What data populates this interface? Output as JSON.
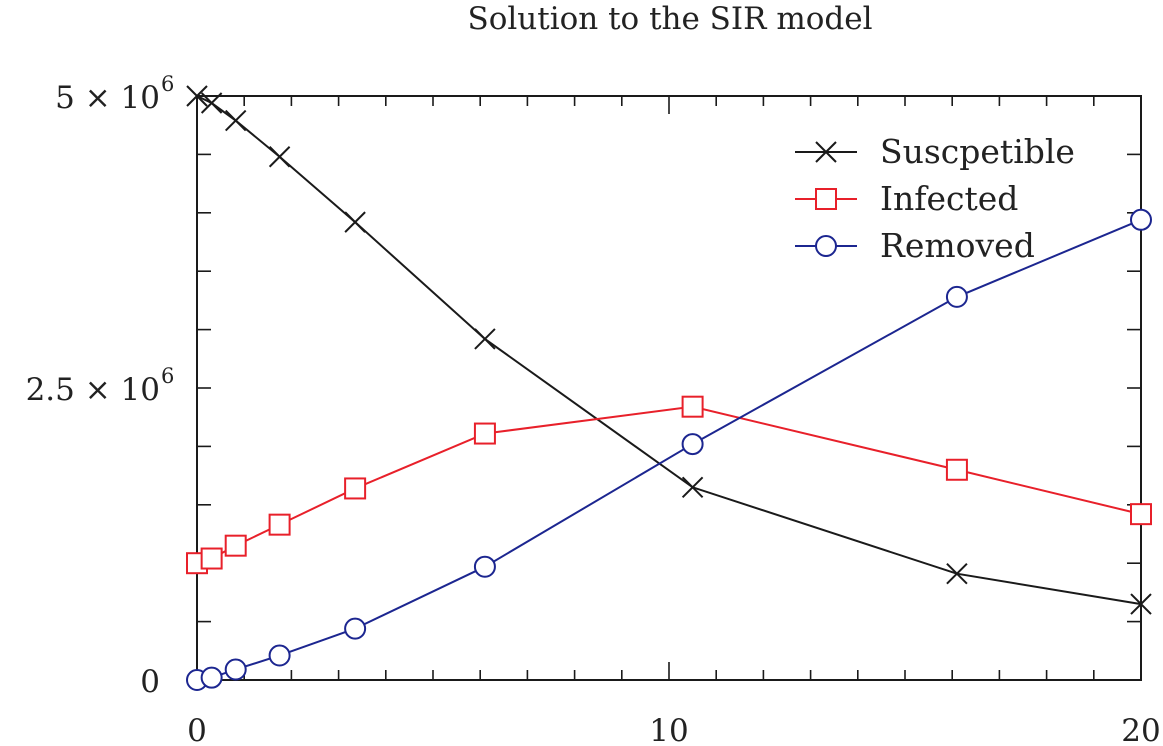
{
  "chart_data": {
    "type": "line",
    "title": "Solution to the SIR model",
    "xlabel": "",
    "ylabel": "",
    "xlim": [
      0,
      20
    ],
    "ylim": [
      0,
      5000000
    ],
    "grid": false,
    "legend_position": "top-right",
    "x_ticks": [
      {
        "value": 0,
        "label": "0"
      },
      {
        "value": 10,
        "label": "10"
      },
      {
        "value": 20,
        "label": "20"
      }
    ],
    "y_ticks": [
      {
        "value": 0,
        "label": "0",
        "exponent": ""
      },
      {
        "value": 2500000,
        "label": "2.5 × 10",
        "exponent": "6"
      },
      {
        "value": 5000000,
        "label": "5 × 10",
        "exponent": "6"
      }
    ],
    "series": [
      {
        "name": "Suscpetible",
        "color": "#1a1a1a",
        "marker": "cross",
        "x": [
          0,
          0.31,
          0.82,
          1.75,
          3.35,
          6.1,
          10.5,
          16.1,
          20
        ],
        "y": [
          5000000,
          4940000,
          4790000,
          4480000,
          3920000,
          2920000,
          1650000,
          910000,
          650000
        ]
      },
      {
        "name": "Infected",
        "color": "#e8202a",
        "marker": "square",
        "x": [
          0,
          0.31,
          0.82,
          1.75,
          3.35,
          6.1,
          10.5,
          16.1,
          20
        ],
        "y": [
          1000000,
          1040000,
          1150000,
          1330000,
          1640000,
          2110000,
          2340000,
          1800000,
          1420000
        ]
      },
      {
        "name": "Removed",
        "color": "#1c2690",
        "marker": "circle",
        "x": [
          0,
          0.31,
          0.82,
          1.75,
          3.35,
          6.1,
          10.5,
          16.1,
          20
        ],
        "y": [
          0,
          20000,
          90000,
          210000,
          440000,
          970000,
          2020000,
          3280000,
          3940000
        ]
      }
    ]
  }
}
